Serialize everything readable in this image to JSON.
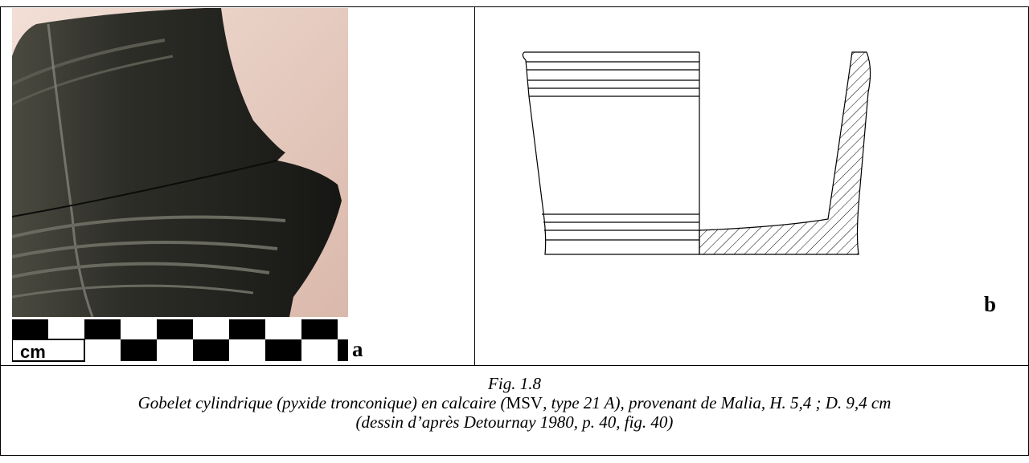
{
  "figure": {
    "panel_a_letter": "a",
    "panel_b_letter": "b",
    "scale_label": "cm",
    "caption": {
      "fig_number": "Fig. 1.8",
      "line2_part1": "Gobelet cylindrique (pyxide tronconique) en calcaire (",
      "line2_msv": "MSV",
      "line2_part2": ", type 21 A), provenant de Malia, H. 5,4 ; D. 9,4 cm",
      "line3": "(dessin d’après Detournay 1980, p. 40, fig. 40)"
    }
  }
}
